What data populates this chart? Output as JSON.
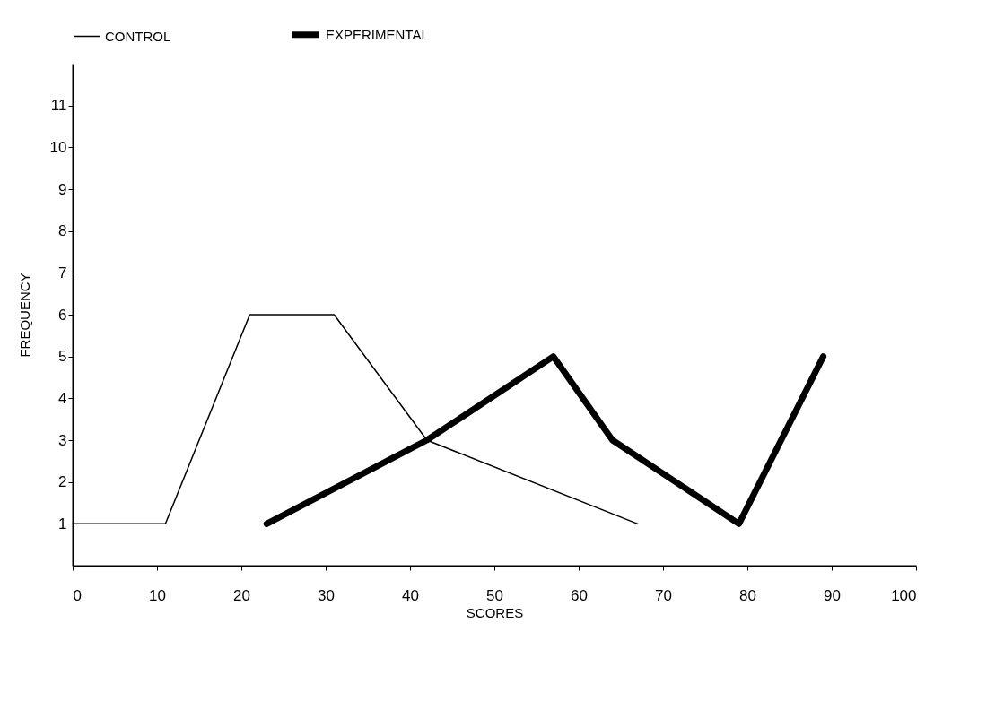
{
  "chart_data": {
    "type": "line",
    "xlabel": "SCORES",
    "ylabel": "FREQUENCY",
    "xlim": [
      0,
      100
    ],
    "ylim": [
      0,
      12
    ],
    "xticks": [
      0,
      10,
      20,
      30,
      40,
      50,
      60,
      70,
      80,
      90,
      100
    ],
    "yticks": [
      1,
      2,
      3,
      4,
      5,
      6,
      7,
      8,
      9,
      10,
      11
    ],
    "grid": false,
    "legend": "top",
    "marker": "none",
    "line_style": "solid",
    "series": [
      {
        "name": "CONTROL",
        "color": "#000000",
        "x": [
          0,
          11,
          21,
          31,
          42,
          67
        ],
        "values": [
          1,
          1,
          6,
          6,
          3,
          1
        ]
      },
      {
        "name": "EXPERIMENTAL",
        "color": "#000000",
        "x": [
          23,
          42,
          57,
          64,
          79,
          89
        ],
        "values": [
          1,
          3,
          5,
          3,
          1,
          5
        ]
      }
    ]
  }
}
